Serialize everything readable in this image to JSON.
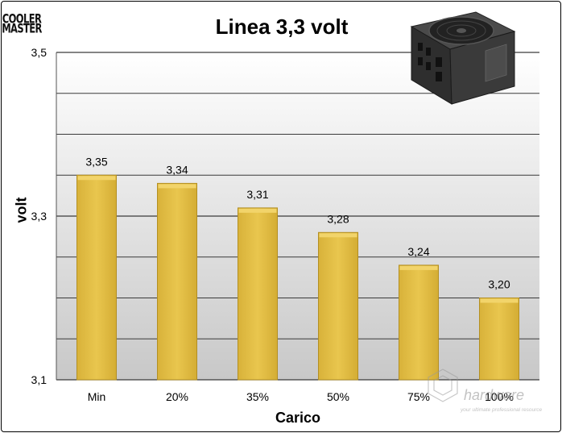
{
  "logo": {
    "line1": "COOLER",
    "line2": "MASTER"
  },
  "colors": {
    "bar": "#e3bd3e",
    "bar_light": "#f2d46a",
    "bar_dark": "#b38f22",
    "grid": "#3a3a3a"
  },
  "chart_data": {
    "type": "bar",
    "title": "Linea 3,3 volt",
    "xlabel": "Carico",
    "ylabel": "volt",
    "categories": [
      "Min",
      "20%",
      "35%",
      "50%",
      "75%",
      "100%"
    ],
    "values": [
      3.35,
      3.34,
      3.31,
      3.28,
      3.24,
      3.2
    ],
    "value_labels": [
      "3,35",
      "3,34",
      "3,31",
      "3,28",
      "3,24",
      "3,20"
    ],
    "ylim": [
      3.1,
      3.5
    ],
    "yticks": [
      {
        "value": 3.1,
        "label": "3,1"
      },
      {
        "value": 3.3,
        "label": "3,3"
      },
      {
        "value": 3.5,
        "label": "3,5"
      }
    ],
    "minor_step": 0.05,
    "grid": true,
    "legend": "none"
  },
  "watermark": {
    "brand": "hardware",
    "tagline": "your ultimate professional resource"
  }
}
